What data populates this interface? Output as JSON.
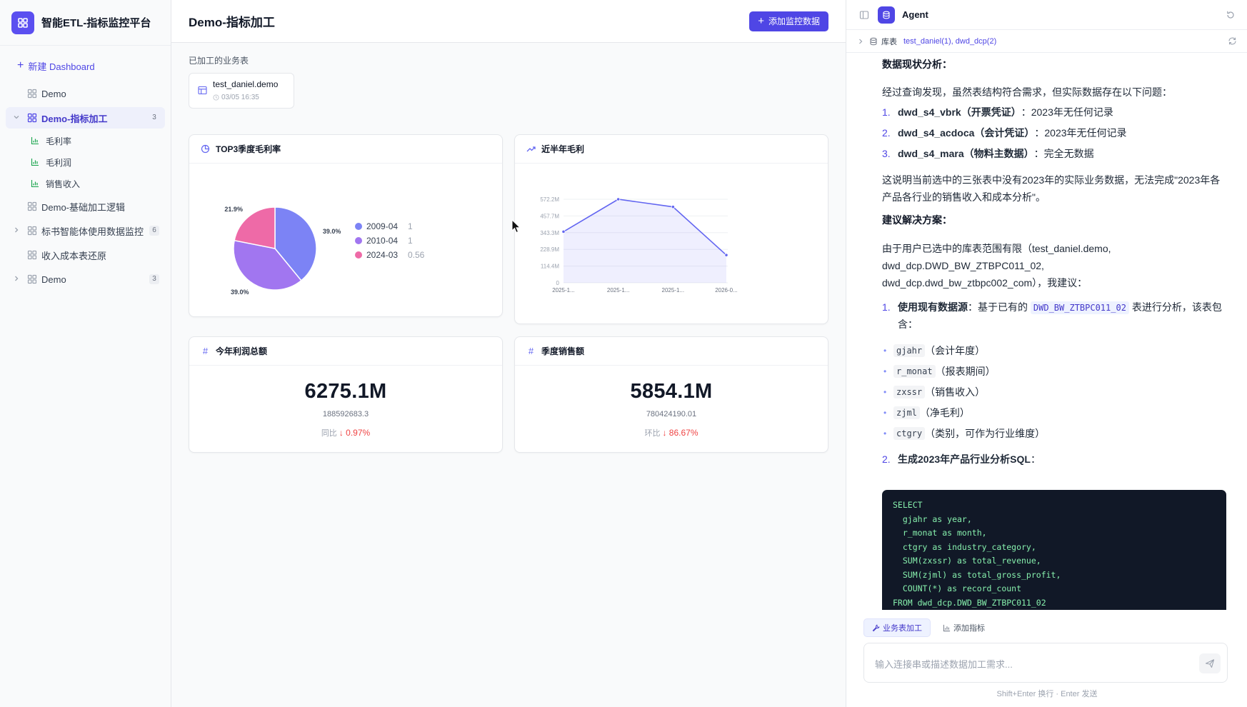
{
  "app": {
    "title": "智能ETL-指标监控平台",
    "accent": "#4f46e5"
  },
  "sidebar": {
    "new_dashboard": "新建 Dashboard",
    "items": [
      {
        "label": "Demo",
        "icon": "grid-icon"
      },
      {
        "label": "Demo-指标加工",
        "icon": "grid-icon",
        "count": "3",
        "active": true,
        "expanded": true,
        "children": [
          {
            "label": "毛利率",
            "icon": "bar-chart-icon"
          },
          {
            "label": "毛利润",
            "icon": "bar-chart-icon"
          },
          {
            "label": "销售收入",
            "icon": "bar-chart-icon"
          }
        ]
      },
      {
        "label": "Demo-基础加工逻辑",
        "icon": "grid-icon"
      },
      {
        "label": "标书智能体使用数据监控",
        "icon": "grid-icon",
        "count": "6",
        "expanded": false
      },
      {
        "label": "收入成本表还原",
        "icon": "grid-icon"
      },
      {
        "label": "Demo",
        "icon": "grid-icon",
        "count": "3",
        "expanded": false
      }
    ]
  },
  "main": {
    "title": "Demo-指标加工",
    "add_button": "添加监控数据",
    "tables_label": "已加工的业务表",
    "tables": [
      {
        "name": "test_daniel.demo",
        "date": "03/05 16:35"
      }
    ]
  },
  "cards": {
    "pie_title": "TOP3季度毛利率",
    "line_title": "近半年毛利",
    "kpi1": {
      "title": "今年利润总额",
      "value": "6275.1M",
      "raw": "188592683.3",
      "cmp_label": "同比",
      "change": "↓ 0.97%"
    },
    "kpi2": {
      "title": "季度销售额",
      "value": "5854.1M",
      "raw": "780424190.01",
      "cmp_label": "环比",
      "change": "↓ 86.67%"
    }
  },
  "chart_data": [
    {
      "type": "pie",
      "title": "TOP3季度毛利率",
      "categories": [
        "2009-04",
        "2010-04",
        "2024-03"
      ],
      "values": [
        1,
        1,
        0.56
      ],
      "labels": [
        "39.0%",
        "39.0%",
        "21.9%"
      ],
      "colors": [
        "#7c83f5",
        "#a176f0",
        "#ee6aa7"
      ],
      "legend": "right"
    },
    {
      "type": "area",
      "title": "近半年毛利",
      "x": [
        "2025-1...",
        "2025-1...",
        "2025-1...",
        "2026-0..."
      ],
      "y": [
        350,
        572.2,
        520,
        190
      ],
      "yticks": [
        "572.2M",
        "457.7M",
        "343.3M",
        "228.9M",
        "114.4M",
        "0"
      ],
      "ylim": [
        0,
        572.2
      ],
      "grid": true,
      "color": "#6366f1"
    }
  ],
  "agent": {
    "name": "Agent",
    "scope_label": "库表",
    "scope_value": "test_daniel(1), dwd_dcp(2)",
    "message": {
      "h1": "数据现状分析：",
      "p1": "经过查询发现，虽然表结构符合需求，但实际数据存在以下问题：",
      "issues": [
        {
          "num": "1.",
          "bold": "dwd_s4_vbrk（开票凭证）",
          "text": "：2023年无任何记录"
        },
        {
          "num": "2.",
          "bold": "dwd_s4_acdoca（会计凭证）",
          "text": "：2023年无任何记录"
        },
        {
          "num": "3.",
          "bold": "dwd_s4_mara（物料主数据）",
          "text": "：完全无数据"
        }
      ],
      "p2": "这说明当前选中的三张表中没有2023年的实际业务数据，无法完成\"2023年各产品各行业的销售收入和成本分析\"。",
      "h2": "建议解决方案：",
      "p3": "由于用户已选中的库表范围有限（test_daniel.demo, dwd_dcp.DWD_BW_ZTBPC011_02, dwd_dcp.dwd_bw_ztbpc002_com），我建议：",
      "s1_num": "1.",
      "s1_bold": "使用现有数据源",
      "s1_pre": "：基于已有的 ",
      "s1_code": "DWD_BW_ZTBPC011_02",
      "s1_post": " 表进行分析，该表包含：",
      "fields": [
        {
          "code": "gjahr",
          "desc": "（会计年度）"
        },
        {
          "code": "r_monat",
          "desc": "（报表期间）"
        },
        {
          "code": "zxssr",
          "desc": "（销售收入）"
        },
        {
          "code": "zjml",
          "desc": "（净毛利）"
        },
        {
          "code": "ctgry",
          "desc": "（类别，可作为行业维度）"
        }
      ],
      "s2_num": "2.",
      "s2_bold": "生成2023年产品行业分析SQL",
      "s2_post": "：",
      "sql": "SELECT\n  gjahr as year,\n  r_monat as month,\n  ctgry as industry_category,\n  SUM(zxssr) as total_revenue,\n  SUM(zjml) as total_gross_profit,\n  COUNT(*) as record_count\nFROM dwd_dcp.DWD_BW_ZTBPC011_02"
    },
    "tabs": [
      {
        "label": "业务表加工",
        "icon": "wrench-icon",
        "active": true
      },
      {
        "label": "添加指标",
        "icon": "bar-chart-icon",
        "active": false
      }
    ],
    "input_placeholder": "输入连接串或描述数据加工需求...",
    "hint": "Shift+Enter 换行 · Enter 发送"
  }
}
